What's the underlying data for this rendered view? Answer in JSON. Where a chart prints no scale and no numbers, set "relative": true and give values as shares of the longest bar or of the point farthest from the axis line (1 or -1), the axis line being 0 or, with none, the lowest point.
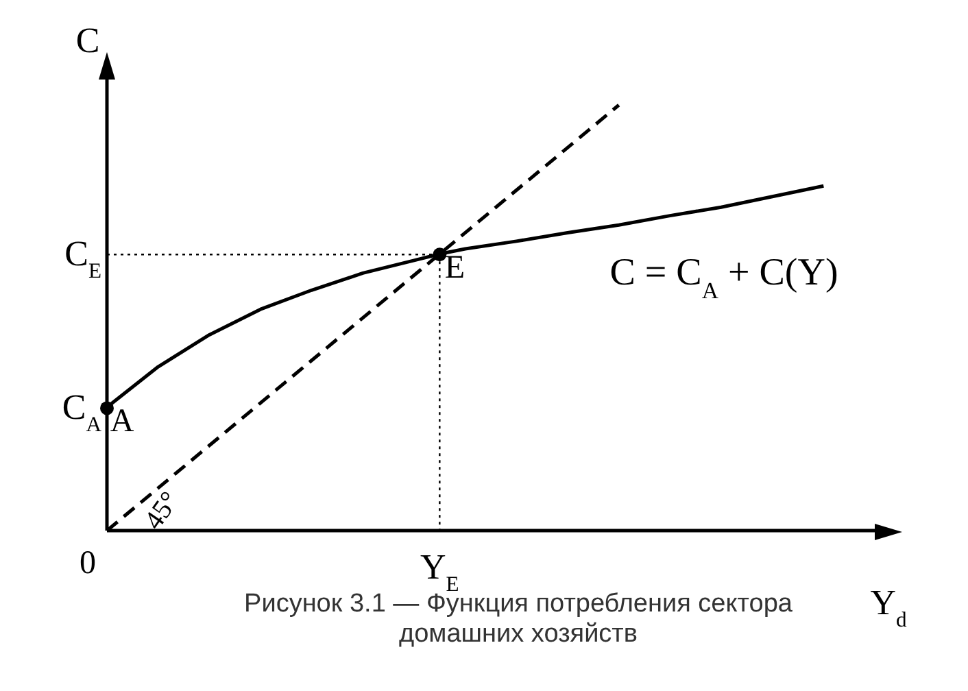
{
  "chart_data": {
    "type": "line",
    "relative": true,
    "xlabel": "Y$_{d}$",
    "ylabel": "C",
    "grid": false,
    "legend": false,
    "categories": [
      null,
      null,
      null,
      null,
      null,
      null,
      null,
      null,
      null,
      null,
      null,
      null,
      null,
      null,
      null,
      null,
      null,
      null,
      null,
      null,
      null,
      null,
      null,
      null,
      null,
      null,
      null,
      null,
      null,
      null
    ],
    "series": [
      {
        "color": "#000000",
        "line_style": "solid",
        "values": [
          0.29,
          null,
          0.385,
          null,
          0.46,
          null,
          0.52,
          null,
          0.565,
          null,
          0.605,
          null,
          0.635,
          0.65,
          0.662,
          null,
          0.68,
          null,
          0.7,
          null,
          0.718,
          null,
          0.74,
          null,
          0.76,
          null,
          0.785,
          null,
          0.81,
          null
        ]
      },
      {
        "color": "#000000",
        "line_style": "dashed",
        "values": [
          0,
          null,
          null,
          null,
          null,
          null,
          null,
          null,
          null,
          null,
          null,
          null,
          null,
          null,
          null,
          null,
          null,
          null,
          null,
          null,
          1.0,
          null,
          null,
          null,
          null,
          null,
          null,
          null,
          null,
          null
        ]
      }
    ],
    "annotations": [
      "A",
      {
        "text": "E",
        "y": 0.65
      },
      "C$_{A}$",
      "C$_{E}$",
      "0",
      "Y$_{E}$",
      "45°",
      "C = C$_{A}$ + C(Y)",
      "Рисунок 3.1 — Функция потребления сектора домашних хозяйств"
    ]
  }
}
